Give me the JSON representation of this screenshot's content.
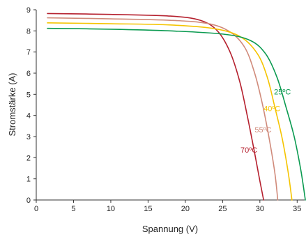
{
  "chart_data": {
    "type": "line",
    "title": "",
    "xlabel": "Spannung (V)",
    "ylabel": "Stromstärke (A)",
    "xlim": [
      0,
      36
    ],
    "ylim": [
      0,
      9
    ],
    "xticks": [
      0,
      5,
      10,
      15,
      20,
      25,
      30,
      35
    ],
    "yticks": [
      0,
      1,
      2,
      3,
      4,
      5,
      6,
      7,
      8,
      9
    ],
    "grid": false,
    "legend": "inline labels",
    "series": [
      {
        "name": "70ºC",
        "color": "#b5202e",
        "x": [
          1.5,
          10,
          18,
          22,
          24.3,
          26,
          27.3,
          28.3,
          29.2,
          30.0,
          30.5
        ],
        "y": [
          8.82,
          8.78,
          8.7,
          8.5,
          8.0,
          7.0,
          5.6,
          4.0,
          2.4,
          0.9,
          0.0
        ]
      },
      {
        "name": "55ºC",
        "color": "#d08a7a",
        "x": [
          1.5,
          10,
          18,
          23,
          26,
          28,
          29.3,
          30.3,
          31.2,
          32.0,
          32.4
        ],
        "y": [
          8.62,
          8.57,
          8.5,
          8.35,
          7.95,
          7.2,
          6.0,
          4.6,
          3.0,
          1.3,
          0.0
        ]
      },
      {
        "name": "40ºC",
        "color": "#f5c400",
        "x": [
          1.5,
          10,
          18,
          24,
          27.5,
          29.7,
          31.0,
          32.0,
          33.0,
          33.8,
          34.3
        ],
        "y": [
          8.38,
          8.34,
          8.28,
          8.1,
          7.7,
          6.9,
          5.8,
          4.4,
          2.9,
          1.3,
          0.0
        ]
      },
      {
        "name": "25ºC",
        "color": "#0a9a50",
        "x": [
          1.5,
          10,
          18,
          25,
          28.7,
          30.8,
          32.3,
          33.5,
          34.6,
          35.5,
          36.1
        ],
        "y": [
          8.12,
          8.08,
          8.0,
          7.85,
          7.55,
          6.9,
          5.8,
          4.4,
          3.0,
          1.4,
          0.0
        ]
      }
    ]
  },
  "labels": {
    "xlabel": "Spannung (V)",
    "ylabel": "Stromstärke (A)"
  }
}
